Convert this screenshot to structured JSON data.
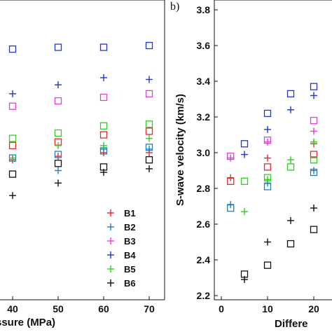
{
  "colors": {
    "B1": "#e8282c",
    "B2": "#1f7fbf",
    "B3": "#e040d8",
    "B4": "#2436cc",
    "B5": "#33cc22",
    "B6": "#111111"
  },
  "chart_data": [
    {
      "type": "scatter",
      "panel": "a",
      "title": "",
      "xlabel": "ssure (MPa)",
      "ylabel": "",
      "xlim": [
        35,
        72
      ],
      "ylim": [
        2.2,
        3.8
      ],
      "x_ticks": [
        "40",
        "50",
        "60",
        "70"
      ],
      "grid": false,
      "legend": {
        "placement": "bottom-right",
        "entries": [
          "B1",
          "B2",
          "B3",
          "B4",
          "B5",
          "B6"
        ]
      },
      "series": [
        {
          "name": "B1",
          "marker": "square",
          "points": [
            [
              40,
              3.04
            ],
            [
              50,
              3.06
            ],
            [
              60,
              3.1
            ],
            [
              70,
              3.12
            ]
          ]
        },
        {
          "name": "B1",
          "marker": "plus",
          "points": [
            [
              40,
              2.96
            ],
            [
              50,
              2.98
            ],
            [
              60,
              3.0
            ],
            [
              70,
              3.0
            ]
          ]
        },
        {
          "name": "B2",
          "marker": "square",
          "points": [
            [
              40,
              2.97
            ],
            [
              50,
              2.99
            ],
            [
              60,
              3.01
            ],
            [
              70,
              3.03
            ]
          ]
        },
        {
          "name": "B2",
          "marker": "plus",
          "points": [
            [
              40,
              2.97
            ],
            [
              50,
              2.9
            ],
            [
              60,
              3.02
            ],
            [
              70,
              3.02
            ]
          ]
        },
        {
          "name": "B3",
          "marker": "square",
          "points": [
            [
              40,
              3.26
            ],
            [
              50,
              3.29
            ],
            [
              60,
              3.31
            ],
            [
              70,
              3.33
            ]
          ]
        },
        {
          "name": "B4",
          "marker": "square",
          "points": [
            [
              40,
              3.58
            ],
            [
              50,
              3.59
            ],
            [
              60,
              3.59
            ],
            [
              70,
              3.6
            ]
          ]
        },
        {
          "name": "B4",
          "marker": "plus",
          "points": [
            [
              40,
              3.33
            ],
            [
              50,
              3.38
            ],
            [
              60,
              3.42
            ],
            [
              70,
              3.41
            ]
          ]
        },
        {
          "name": "B5",
          "marker": "square",
          "points": [
            [
              40,
              3.08
            ],
            [
              50,
              3.11
            ],
            [
              60,
              3.15
            ],
            [
              70,
              3.16
            ]
          ]
        },
        {
          "name": "B5",
          "marker": "plus",
          "points": [
            [
              40,
              2.97
            ],
            [
              50,
              3.04
            ],
            [
              60,
              3.04
            ],
            [
              70,
              3.08
            ]
          ]
        },
        {
          "name": "B6",
          "marker": "square",
          "points": [
            [
              40,
              2.88
            ],
            [
              50,
              2.94
            ],
            [
              60,
              2.92
            ],
            [
              70,
              2.96
            ]
          ]
        },
        {
          "name": "B6",
          "marker": "plus",
          "points": [
            [
              40,
              2.76
            ],
            [
              50,
              2.83
            ],
            [
              60,
              2.89
            ],
            [
              70,
              2.91
            ]
          ]
        }
      ]
    },
    {
      "type": "scatter",
      "panel": "b",
      "panel_label": "b)",
      "title": "",
      "xlabel": "Differe",
      "ylabel": "S-wave velocity (km/s)",
      "xlim": [
        0,
        24
      ],
      "ylim": [
        2.2,
        3.8
      ],
      "x_ticks": [
        "0",
        "10",
        "20"
      ],
      "y_ticks": [
        "2.2",
        "2.4",
        "2.6",
        "2.8",
        "3.0",
        "3.2",
        "3.4",
        "3.6",
        "3.8"
      ],
      "grid": false,
      "series": [
        {
          "name": "B1",
          "marker": "square",
          "points": [
            [
              2,
              2.84
            ],
            [
              10,
              2.92
            ],
            [
              20,
              2.99
            ]
          ]
        },
        {
          "name": "B1",
          "marker": "plus",
          "points": [
            [
              2,
              2.86
            ],
            [
              10,
              2.97
            ],
            [
              20,
              3.05
            ]
          ]
        },
        {
          "name": "B2",
          "marker": "square",
          "points": [
            [
              2,
              2.69
            ],
            [
              10,
              2.81
            ],
            [
              20,
              2.89
            ]
          ]
        },
        {
          "name": "B2",
          "marker": "plus",
          "points": [
            [
              2,
              2.71
            ],
            [
              10,
              2.83
            ],
            [
              20,
              2.9
            ]
          ]
        },
        {
          "name": "B3",
          "marker": "square",
          "points": [
            [
              2,
              2.98
            ],
            [
              10,
              3.07
            ],
            [
              20,
              3.18
            ]
          ]
        },
        {
          "name": "B3",
          "marker": "plus",
          "points": [
            [
              2,
              2.97
            ],
            [
              10,
              3.06
            ],
            [
              20,
              3.12
            ]
          ]
        },
        {
          "name": "B4",
          "marker": "square",
          "points": [
            [
              5,
              3.05
            ],
            [
              10,
              3.22
            ],
            [
              15,
              3.33
            ],
            [
              20,
              3.37
            ]
          ]
        },
        {
          "name": "B4",
          "marker": "plus",
          "points": [
            [
              5,
              2.99
            ],
            [
              10,
              3.13
            ],
            [
              15,
              3.24
            ],
            [
              20,
              3.32
            ]
          ]
        },
        {
          "name": "B5",
          "marker": "square",
          "points": [
            [
              5,
              2.84
            ],
            [
              10,
              2.86
            ],
            [
              15,
              2.92
            ],
            [
              20,
              2.96
            ]
          ]
        },
        {
          "name": "B5",
          "marker": "plus",
          "points": [
            [
              5,
              2.67
            ],
            [
              10,
              2.85
            ],
            [
              15,
              2.96
            ],
            [
              20,
              3.06
            ]
          ]
        },
        {
          "name": "B6",
          "marker": "square",
          "points": [
            [
              5,
              2.32
            ],
            [
              10,
              2.37
            ],
            [
              15,
              2.49
            ],
            [
              20,
              2.57
            ]
          ]
        },
        {
          "name": "B6",
          "marker": "plus",
          "points": [
            [
              5,
              2.29
            ],
            [
              10,
              2.5
            ],
            [
              15,
              2.62
            ],
            [
              20,
              2.69
            ]
          ]
        }
      ]
    }
  ]
}
